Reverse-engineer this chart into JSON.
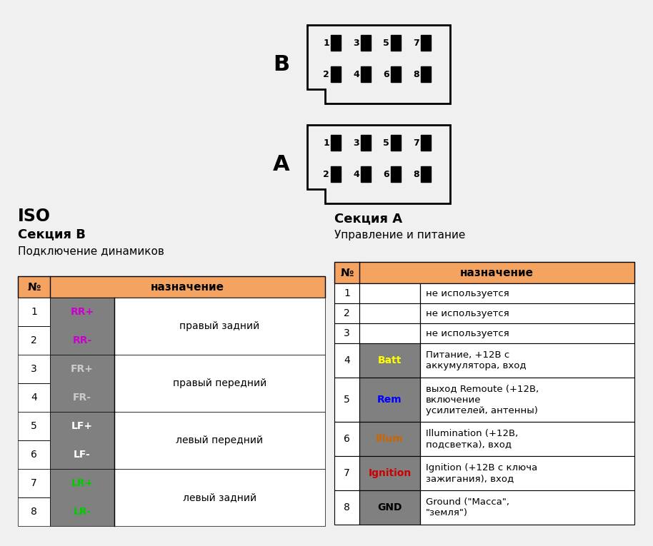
{
  "bg_color": "#f0f0f0",
  "connector_label_B": "B",
  "connector_label_A": "A",
  "iso_title": "ISO",
  "sec_b_title": "Секция В",
  "sec_b_sub": "Подключение динамиков",
  "sec_a_title": "Секция А",
  "sec_a_sub": "Управление и питание",
  "header_color": "#f4a460",
  "header_text": "назначение",
  "header_no": "№",
  "gray_cell": "#808080",
  "table_b": [
    {
      "no": "1",
      "label": "RR+",
      "label_color": "#cc00cc",
      "desc": "правый задний"
    },
    {
      "no": "2",
      "label": "RR-",
      "label_color": "#cc00cc",
      "desc": ""
    },
    {
      "no": "3",
      "label": "FR+",
      "label_color": "#cccccc",
      "desc": "правый передний"
    },
    {
      "no": "4",
      "label": "FR-",
      "label_color": "#cccccc",
      "desc": ""
    },
    {
      "no": "5",
      "label": "LF+",
      "label_color": "#ffffff",
      "desc": "левый передний"
    },
    {
      "no": "6",
      "label": "LF-",
      "label_color": "#ffffff",
      "desc": ""
    },
    {
      "no": "7",
      "label": "LR+",
      "label_color": "#00cc00",
      "desc": "левый задний"
    },
    {
      "no": "8",
      "label": "LR-",
      "label_color": "#00cc00",
      "desc": ""
    }
  ],
  "table_a": [
    {
      "no": "1",
      "label": "",
      "label_color": "#000000",
      "desc": "не используется",
      "bg": "#ffffff"
    },
    {
      "no": "2",
      "label": "",
      "label_color": "#000000",
      "desc": "не используется",
      "bg": "#ffffff"
    },
    {
      "no": "3",
      "label": "",
      "label_color": "#000000",
      "desc": "не используется",
      "bg": "#ffffff"
    },
    {
      "no": "4",
      "label": "Batt",
      "label_color": "#ffff00",
      "desc": "Питание, +12В с\nаккумулятора, вход",
      "bg": "#808080"
    },
    {
      "no": "5",
      "label": "Rem",
      "label_color": "#0000ff",
      "desc": "выход Remoute (+12В,\nвключение\nусилителей, антенны)",
      "bg": "#808080"
    },
    {
      "no": "6",
      "label": "Illum",
      "label_color": "#cc6600",
      "desc": "Illumination (+12В,\nподсветка), вход",
      "bg": "#808080"
    },
    {
      "no": "7",
      "label": "Ignition",
      "label_color": "#cc0000",
      "desc": "Ignition (+12В с ключа\nзажигания), вход",
      "bg": "#808080"
    },
    {
      "no": "8",
      "label": "GND",
      "label_color": "#000000",
      "desc": "Ground (\"Масса\",\n\"земля\")",
      "bg": "#808080"
    }
  ]
}
